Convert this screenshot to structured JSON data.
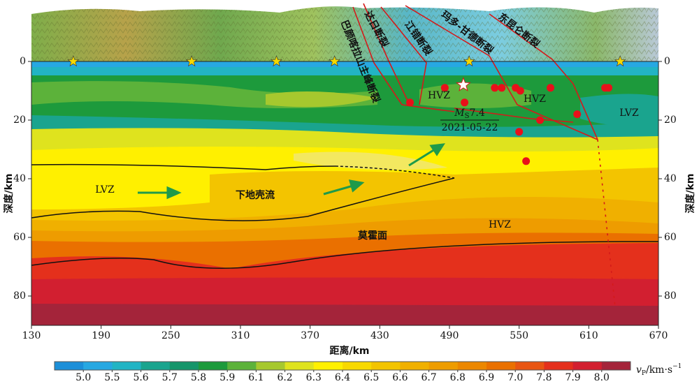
{
  "chart_data": {
    "type": "cross-section",
    "xlabel": "距离/km",
    "ylabel": "深度/km",
    "xlim": [
      130,
      670
    ],
    "xticks": [
      130,
      190,
      250,
      310,
      370,
      430,
      490,
      550,
      610,
      670
    ],
    "ylim": [
      0,
      90
    ],
    "yticks": [
      0,
      20,
      40,
      60,
      80
    ],
    "y_inverted": true,
    "stations": {
      "x": [
        166,
        268,
        341,
        391,
        507,
        637
      ],
      "color": "#f5d800"
    },
    "earthquakes": {
      "x": [
        486,
        456,
        503,
        529,
        535,
        547,
        551,
        577,
        550,
        568,
        600,
        624,
        627,
        556
      ],
      "depth": [
        9,
        14,
        14,
        9,
        9,
        9,
        10,
        9,
        24,
        20,
        18,
        9,
        9,
        34
      ],
      "color": "#e8101a"
    },
    "mainshock": {
      "x": 502,
      "depth": 8,
      "color": "#ffffff",
      "symbol": "M",
      "subscript": "S",
      "magnitude": 7.4,
      "date": "2021-05-22"
    },
    "faults": [
      "巴颜喀拉山主峰断裂",
      "达日断裂",
      "江错断裂",
      "玛多-甘德断裂",
      "东昆仑断裂"
    ],
    "zones": [
      "HVZ",
      "HVZ",
      "HVZ",
      "LVZ",
      "LVZ"
    ],
    "flow_label": "下地壳流",
    "moho_label": "莫霍面",
    "colorbar": {
      "ticks": [
        {
          "value": 5,
          "label": "5.0"
        },
        5.5,
        5.6,
        5.7,
        5.8,
        5.9,
        6.1,
        6.2,
        6.3,
        6.4,
        6.5,
        6.6,
        6.7,
        6.8,
        6.9,
        {
          "value": 7,
          "label": "7.0"
        },
        7.8,
        7.9,
        {
          "value": 8,
          "label": "8.0"
        }
      ],
      "colors": [
        "#1c8fd8",
        "#27a8e2",
        "#22b4c4",
        "#1aa48e",
        "#15956a",
        "#1d9a3c",
        "#5cb23a",
        "#a6c82e",
        "#dfe31e",
        "#fff000",
        "#f8d900",
        "#f3c400",
        "#f0b000",
        "#ee9c00",
        "#ec8700",
        "#ea7000",
        "#e85512",
        "#e4301c",
        "#d21f30",
        "#a4243a"
      ],
      "symbol": "v",
      "subscript": "P",
      "unit": "/km·s",
      "exponent": "−1"
    }
  }
}
